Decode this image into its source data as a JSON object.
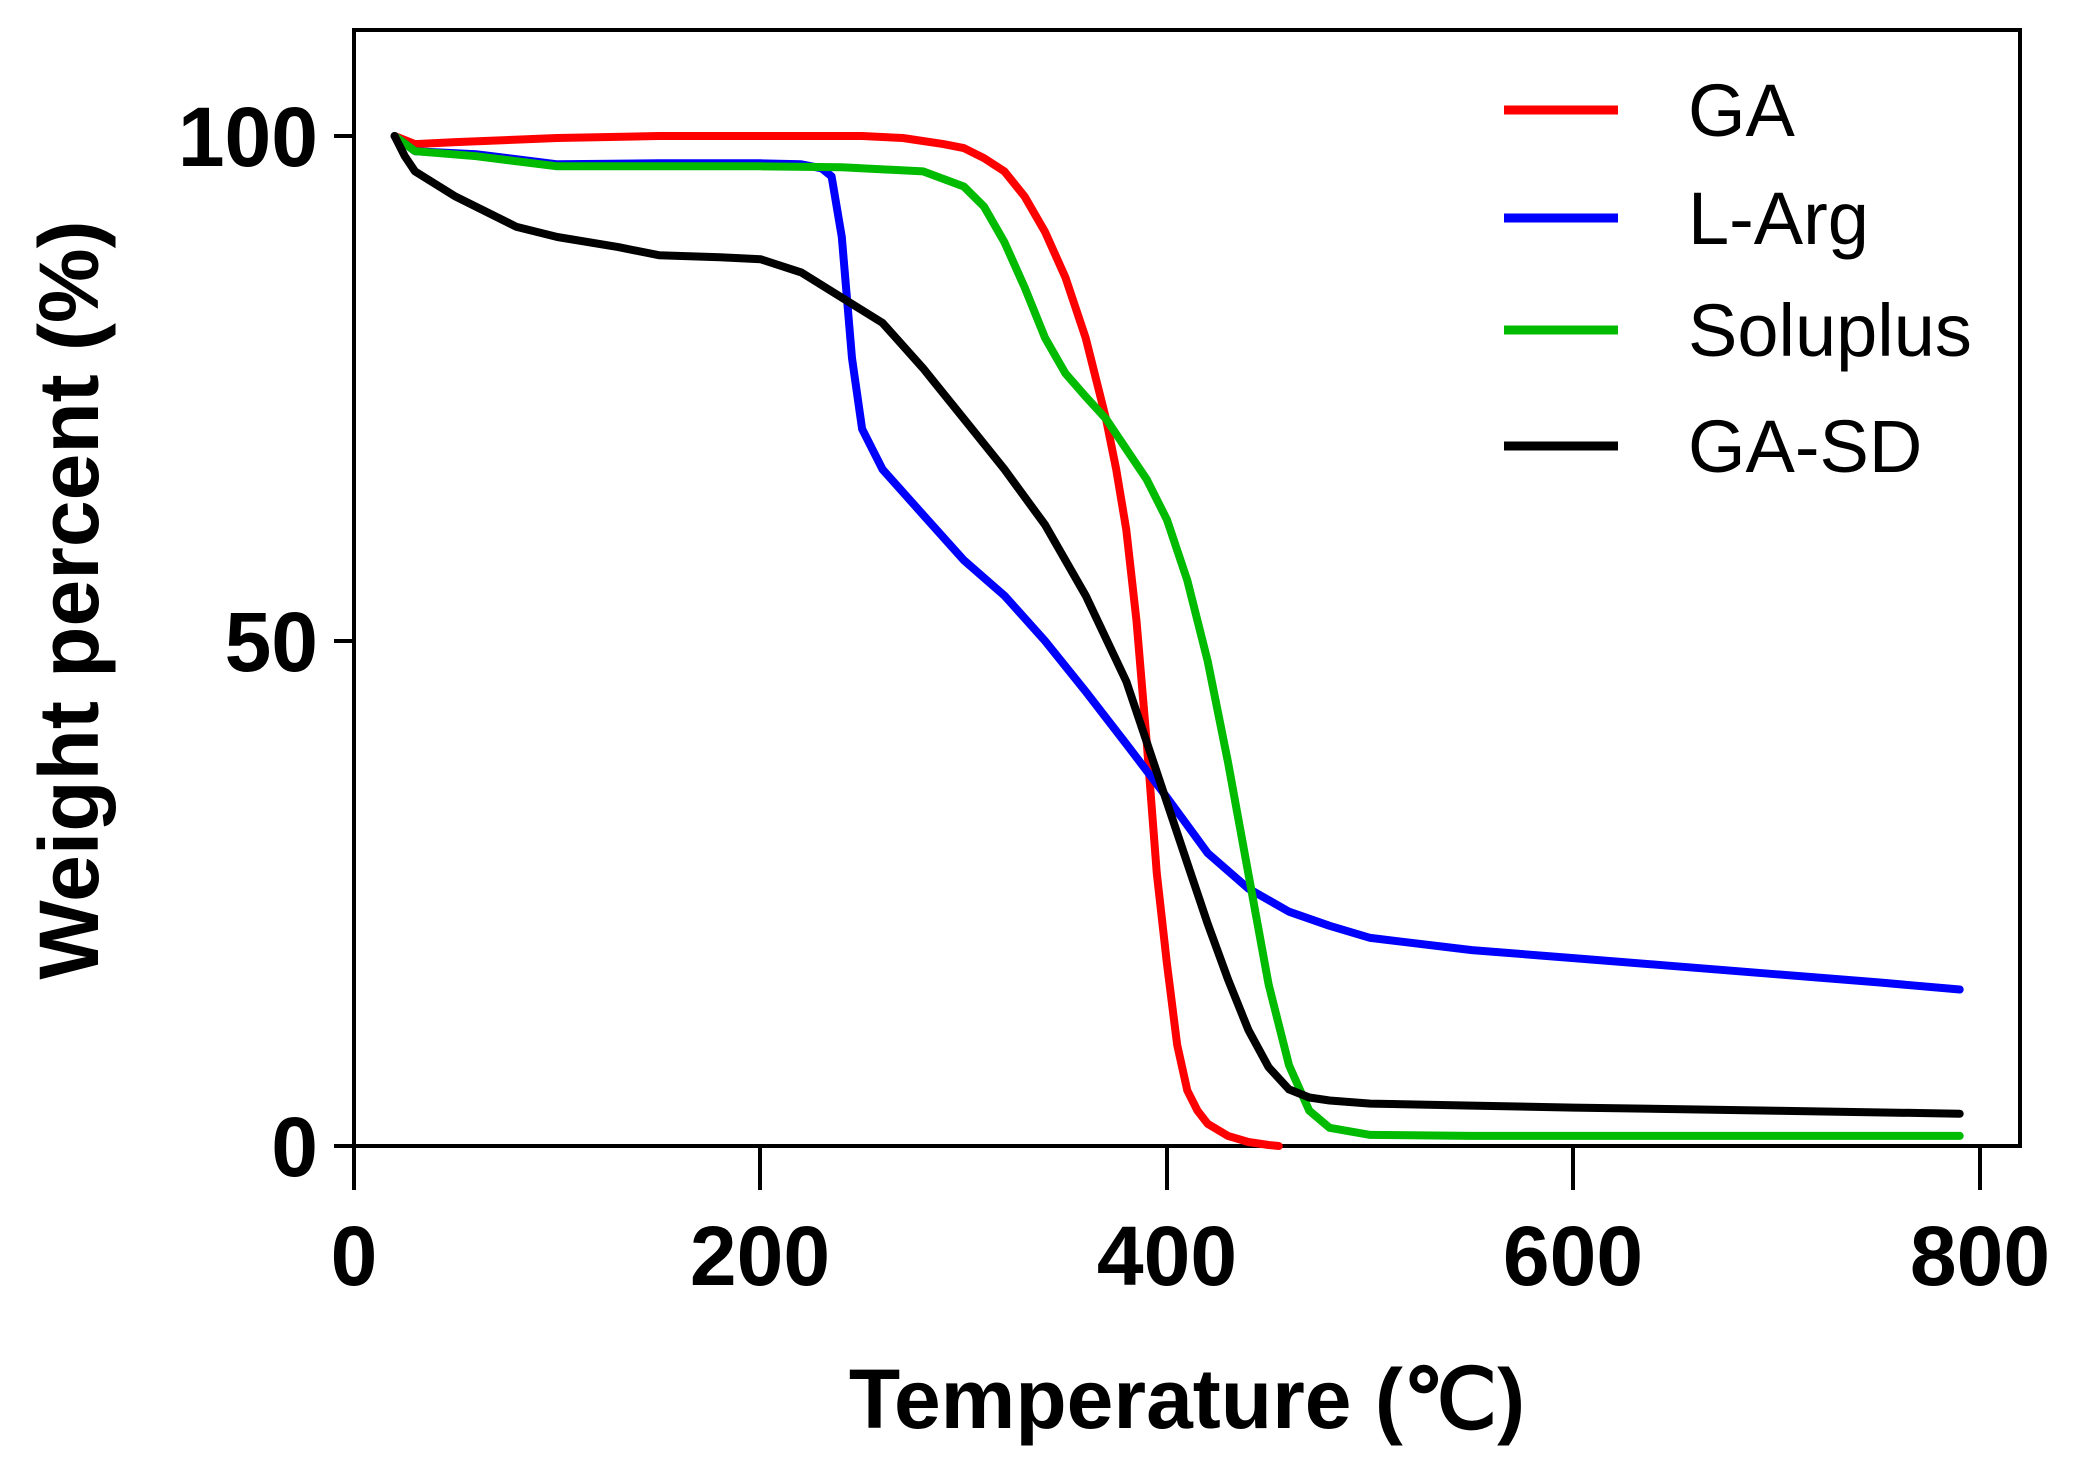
{
  "chart_data": {
    "type": "line",
    "title": "",
    "xlabel": "Temperature (℃)",
    "ylabel": "Weight percent (%)",
    "xlim": [
      0,
      820
    ],
    "ylim": [
      0,
      110
    ],
    "xticks": [
      0,
      200,
      400,
      600,
      800
    ],
    "yticks": [
      0,
      50,
      100
    ],
    "xtick_labels": [
      "0",
      "200",
      "400",
      "600",
      "800"
    ],
    "ytick_labels": [
      "0",
      "50",
      "100"
    ],
    "grid": false,
    "legend_position": "top-right",
    "series": [
      {
        "name": "GA",
        "color": "#ff0000",
        "x": [
          20,
          30,
          50,
          100,
          150,
          200,
          250,
          270,
          290,
          300,
          310,
          320,
          330,
          340,
          350,
          360,
          370,
          375,
          380,
          385,
          390,
          395,
          400,
          405,
          410,
          415,
          420,
          430,
          440,
          450,
          455
        ],
        "y": [
          100,
          99.2,
          99.4,
          99.8,
          100,
          100,
          100,
          99.8,
          99.2,
          98.8,
          97.8,
          96.5,
          94,
          90.5,
          86,
          80,
          72,
          67,
          61,
          52,
          40,
          27,
          18,
          10,
          5.5,
          3.5,
          2.2,
          1,
          0.4,
          0.1,
          0
        ]
      },
      {
        "name": "L-Arg",
        "color": "#0000ff",
        "x": [
          20,
          30,
          60,
          100,
          150,
          200,
          220,
          230,
          235,
          240,
          245,
          250,
          260,
          280,
          300,
          320,
          340,
          360,
          380,
          400,
          420,
          440,
          460,
          480,
          500,
          550,
          600,
          650,
          700,
          750,
          790
        ],
        "y": [
          100,
          98.5,
          98.2,
          97.2,
          97.3,
          97.3,
          97.2,
          96.8,
          96,
          90,
          78,
          71,
          67,
          62.5,
          58,
          54.5,
          50,
          45,
          39.8,
          34.5,
          29,
          25.5,
          23.2,
          21.8,
          20.6,
          19.4,
          18.6,
          17.8,
          17,
          16.2,
          15.5
        ]
      },
      {
        "name": "Soluplus",
        "color": "#00bb00",
        "x": [
          20,
          30,
          60,
          100,
          150,
          200,
          240,
          280,
          300,
          310,
          320,
          330,
          340,
          350,
          360,
          370,
          380,
          390,
          400,
          410,
          420,
          430,
          440,
          450,
          460,
          470,
          480,
          500,
          550,
          600,
          700,
          790
        ],
        "y": [
          100,
          98.5,
          98,
          97,
          97,
          97,
          96.9,
          96.5,
          95,
          93,
          89.5,
          85,
          80,
          76.5,
          74.2,
          72,
          69,
          66,
          62,
          56,
          48,
          38,
          27,
          16,
          8,
          3.5,
          1.8,
          1.1,
          1,
          1,
          1,
          1
        ]
      },
      {
        "name": "GA-SD",
        "color": "#000000",
        "x": [
          20,
          25,
          30,
          50,
          80,
          100,
          130,
          150,
          180,
          200,
          220,
          240,
          260,
          280,
          300,
          320,
          340,
          360,
          380,
          390,
          400,
          410,
          420,
          430,
          440,
          450,
          460,
          470,
          480,
          500,
          550,
          600,
          700,
          790
        ],
        "y": [
          100,
          98,
          96.5,
          94,
          91,
          90,
          89,
          88.2,
          88,
          87.8,
          86.5,
          84,
          81.5,
          77,
          72,
          67,
          61.5,
          54.5,
          46,
          40,
          34,
          28,
          22,
          16.5,
          11.5,
          7.8,
          5.6,
          4.8,
          4.5,
          4.2,
          4,
          3.8,
          3.5,
          3.2
        ]
      }
    ]
  }
}
